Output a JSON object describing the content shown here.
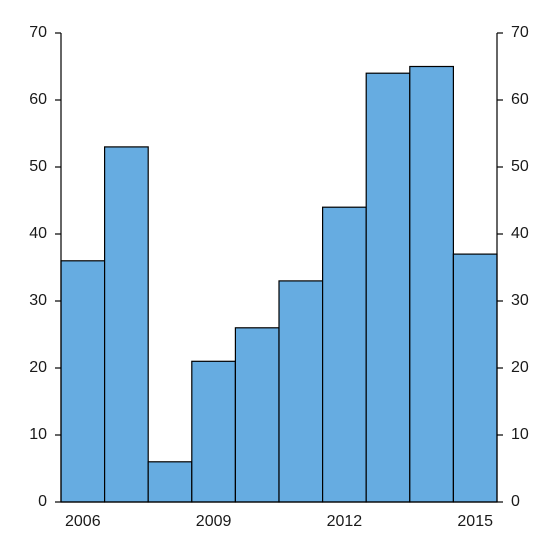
{
  "chart_data": {
    "type": "bar",
    "title": "",
    "xlabel": "",
    "ylabel": "",
    "x": [
      2006,
      2007,
      2008,
      2009,
      2010,
      2011,
      2012,
      2013,
      2014,
      2015
    ],
    "values": [
      36,
      53,
      6,
      21,
      26,
      33,
      44,
      64,
      65,
      37
    ],
    "x_tick_labels": [
      "2006",
      "2009",
      "2012",
      "2015"
    ],
    "y_ticks": [
      0,
      10,
      20,
      30,
      40,
      50,
      60,
      70
    ],
    "ylim": [
      0,
      70
    ],
    "y_axis_right": true,
    "grid": false,
    "bar_color": "#66ace1",
    "edge_color": "#000000"
  }
}
